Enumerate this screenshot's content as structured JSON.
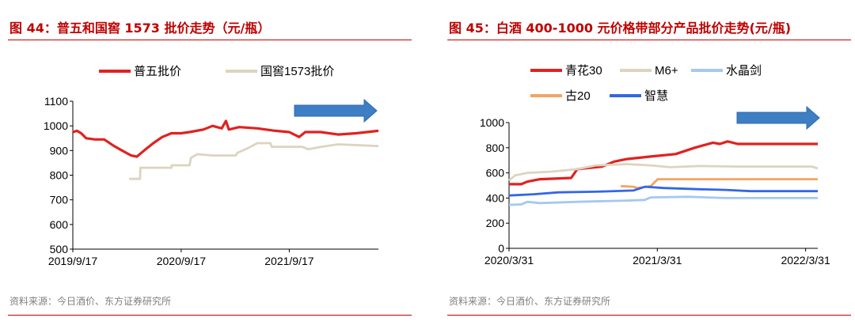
{
  "charts": {
    "left": {
      "title": "图 44：普五和国窖 1573 批价走势（元/瓶）",
      "source": "资料来源：今日酒价、东方证券研究所"
    },
    "right": {
      "title": "图 45：白酒 400-1000 元价格带部分产品批价走势(元/瓶)",
      "source": "资料来源：今日酒价、东方证券研究所"
    }
  },
  "chart_data": [
    {
      "type": "line",
      "title": "图 44：普五和国窖 1573 批价走势（元/瓶）",
      "xlabel": "",
      "ylabel": "",
      "x_ticks": [
        "2019/9/17",
        "2020/9/17",
        "2021/9/17"
      ],
      "x_range": [
        "2019-09-17",
        "2022-07-15"
      ],
      "ylim": [
        500,
        1100
      ],
      "y_ticks": [
        500,
        600,
        700,
        800,
        900,
        1000,
        1100
      ],
      "legend": "top",
      "grid": false,
      "trend_arrow": "right",
      "series": [
        {
          "name": "普五批价",
          "color": "#e0221f",
          "points": [
            [
              "2019-09-17",
              975
            ],
            [
              "2019-10-01",
              980
            ],
            [
              "2019-10-15",
              970
            ],
            [
              "2019-11-01",
              950
            ],
            [
              "2019-12-01",
              945
            ],
            [
              "2020-01-01",
              945
            ],
            [
              "2020-02-01",
              920
            ],
            [
              "2020-03-01",
              900
            ],
            [
              "2020-04-01",
              880
            ],
            [
              "2020-04-20",
              875
            ],
            [
              "2020-05-15",
              900
            ],
            [
              "2020-06-15",
              930
            ],
            [
              "2020-07-15",
              955
            ],
            [
              "2020-08-15",
              970
            ],
            [
              "2020-09-17",
              970
            ],
            [
              "2020-10-15",
              975
            ],
            [
              "2020-12-01",
              985
            ],
            [
              "2021-01-01",
              1000
            ],
            [
              "2021-02-01",
              990
            ],
            [
              "2021-02-15",
              1020
            ],
            [
              "2021-02-25",
              985
            ],
            [
              "2021-04-01",
              995
            ],
            [
              "2021-06-01",
              990
            ],
            [
              "2021-08-01",
              980
            ],
            [
              "2021-09-17",
              975
            ],
            [
              "2021-10-20",
              955
            ],
            [
              "2021-11-10",
              975
            ],
            [
              "2022-01-01",
              975
            ],
            [
              "2022-03-01",
              965
            ],
            [
              "2022-05-01",
              970
            ],
            [
              "2022-07-15",
              980
            ]
          ]
        },
        {
          "name": "国窖1573批价",
          "color": "#ddd4bf",
          "points": [
            [
              "2020-03-25",
              785
            ],
            [
              "2020-05-01",
              785
            ],
            [
              "2020-05-02",
              830
            ],
            [
              "2020-08-15",
              830
            ],
            [
              "2020-08-16",
              840
            ],
            [
              "2020-10-15",
              840
            ],
            [
              "2020-10-20",
              870
            ],
            [
              "2020-11-10",
              885
            ],
            [
              "2021-01-01",
              880
            ],
            [
              "2021-03-20",
              880
            ],
            [
              "2021-03-25",
              890
            ],
            [
              "2021-05-01",
              910
            ],
            [
              "2021-06-01",
              930
            ],
            [
              "2021-07-15",
              930
            ],
            [
              "2021-07-20",
              915
            ],
            [
              "2021-11-01",
              915
            ],
            [
              "2021-11-20",
              905
            ],
            [
              "2022-01-01",
              915
            ],
            [
              "2022-03-01",
              925
            ],
            [
              "2022-07-15",
              918
            ]
          ]
        }
      ]
    },
    {
      "type": "line",
      "title": "图 45：白酒 400-1000 元价格带部分产品批价走势(元/瓶)",
      "xlabel": "",
      "ylabel": "",
      "x_ticks": [
        "2020/3/31",
        "2021/3/31",
        "2022/3/31"
      ],
      "x_range": [
        "2020-03-31",
        "2022-04-30"
      ],
      "ylim": [
        0,
        1000
      ],
      "y_ticks": [
        0,
        200,
        400,
        600,
        800,
        1000
      ],
      "legend": "top",
      "grid": false,
      "trend_arrow": "right",
      "series": [
        {
          "name": "青花30",
          "color": "#e0221f",
          "points": [
            [
              "2020-03-31",
              510
            ],
            [
              "2020-04-30",
              510
            ],
            [
              "2020-05-15",
              530
            ],
            [
              "2020-06-15",
              550
            ],
            [
              "2020-08-31",
              560
            ],
            [
              "2020-09-15",
              630
            ],
            [
              "2020-11-15",
              650
            ],
            [
              "2020-12-15",
              690
            ],
            [
              "2021-01-15",
              710
            ],
            [
              "2021-03-15",
              730
            ],
            [
              "2021-05-15",
              750
            ],
            [
              "2021-07-01",
              800
            ],
            [
              "2021-08-15",
              840
            ],
            [
              "2021-09-01",
              830
            ],
            [
              "2021-09-20",
              850
            ],
            [
              "2021-10-15",
              830
            ],
            [
              "2022-04-30",
              830
            ]
          ]
        },
        {
          "name": "M6+",
          "color": "#ddd4bf",
          "points": [
            [
              "2020-03-31",
              540
            ],
            [
              "2020-04-15",
              580
            ],
            [
              "2020-05-15",
              600
            ],
            [
              "2020-07-15",
              610
            ],
            [
              "2020-09-15",
              630
            ],
            [
              "2020-10-31",
              660
            ],
            [
              "2021-01-15",
              670
            ],
            [
              "2021-03-15",
              660
            ],
            [
              "2021-05-01",
              645
            ],
            [
              "2021-07-15",
              655
            ],
            [
              "2021-10-15",
              650
            ],
            [
              "2022-04-15",
              650
            ],
            [
              "2022-04-30",
              635
            ]
          ]
        },
        {
          "name": "水晶剑",
          "color": "#a5c8f0",
          "points": [
            [
              "2020-03-31",
              345
            ],
            [
              "2020-04-30",
              350
            ],
            [
              "2020-05-15",
              370
            ],
            [
              "2020-06-15",
              360
            ],
            [
              "2020-09-15",
              370
            ],
            [
              "2021-01-15",
              380
            ],
            [
              "2021-02-28",
              385
            ],
            [
              "2021-03-15",
              405
            ],
            [
              "2021-06-15",
              410
            ],
            [
              "2021-09-15",
              400
            ],
            [
              "2022-04-30",
              400
            ]
          ]
        },
        {
          "name": "古20",
          "color": "#f4a460",
          "points": [
            [
              "2020-12-31",
              495
            ],
            [
              "2021-01-31",
              490
            ],
            [
              "2021-02-10",
              480
            ],
            [
              "2021-03-15",
              495
            ],
            [
              "2021-04-01",
              550
            ],
            [
              "2022-04-30",
              550
            ]
          ]
        },
        {
          "name": "智慧",
          "color": "#3366e6",
          "points": [
            [
              "2020-03-31",
              420
            ],
            [
              "2020-05-31",
              430
            ],
            [
              "2020-07-31",
              445
            ],
            [
              "2020-10-31",
              450
            ],
            [
              "2021-01-31",
              460
            ],
            [
              "2021-03-01",
              490
            ],
            [
              "2021-04-15",
              480
            ],
            [
              "2021-07-15",
              470
            ],
            [
              "2021-09-15",
              465
            ],
            [
              "2021-11-15",
              455
            ],
            [
              "2022-04-30",
              455
            ]
          ]
        }
      ]
    }
  ]
}
